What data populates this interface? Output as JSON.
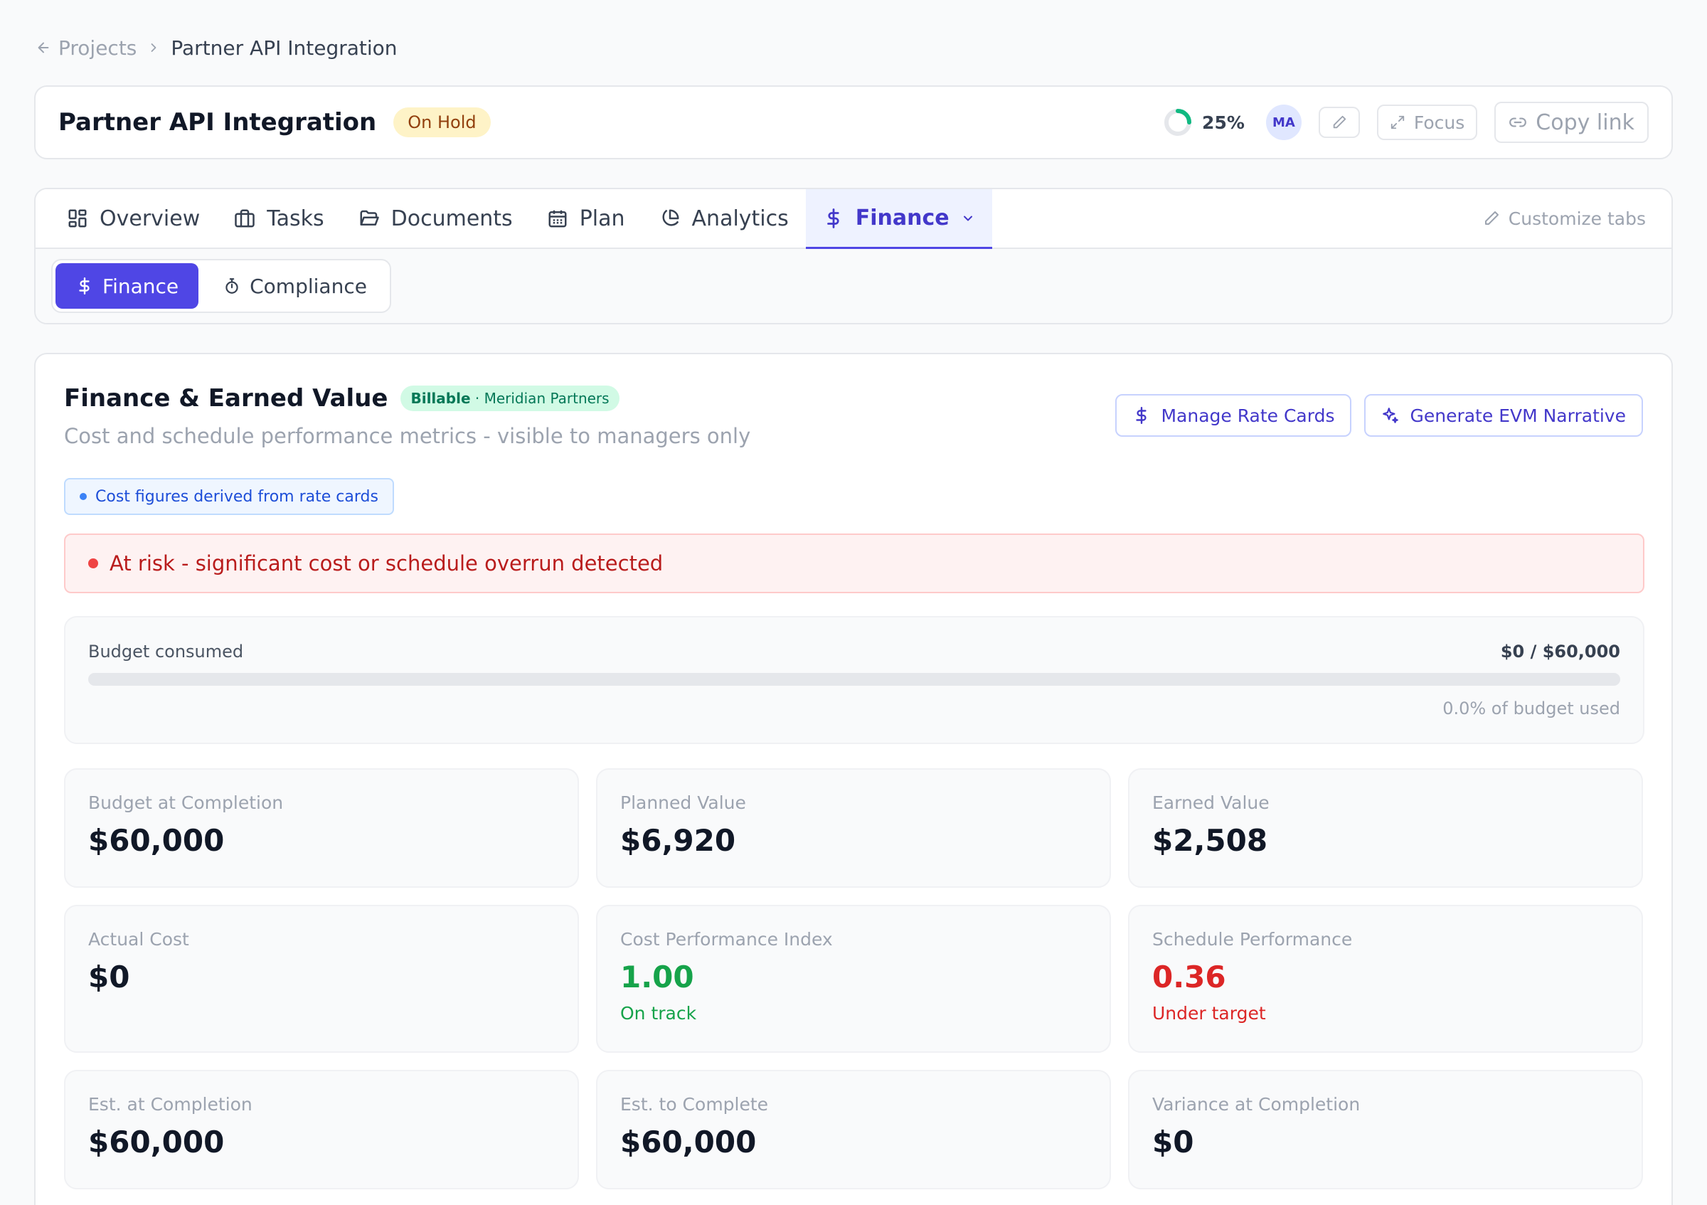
{
  "breadcrumb": {
    "back_label": "Projects",
    "current": "Partner API Integration"
  },
  "header": {
    "title": "Partner API Integration",
    "status": "On Hold",
    "progress_pct": "25%",
    "progress_value": 0.25,
    "avatar_initials": "MA",
    "focus_label": "Focus",
    "copy_link_label": "Copy link"
  },
  "tabs": {
    "items": [
      {
        "label": "Overview",
        "icon": "grid-icon"
      },
      {
        "label": "Tasks",
        "icon": "briefcase-icon"
      },
      {
        "label": "Documents",
        "icon": "folder-icon"
      },
      {
        "label": "Plan",
        "icon": "calendar-icon"
      },
      {
        "label": "Analytics",
        "icon": "pie-chart-icon"
      },
      {
        "label": "Finance",
        "icon": "dollar-icon",
        "active": true
      }
    ],
    "customize_label": "Customize tabs"
  },
  "subtabs": {
    "finance": "Finance",
    "compliance": "Compliance"
  },
  "finance": {
    "title": "Finance & Earned Value",
    "billable_label": "Billable",
    "client": "· Meridian Partners",
    "subtitle": "Cost and schedule performance metrics - visible to managers only",
    "manage_rate_cards": "Manage Rate Cards",
    "generate_narrative": "Generate EVM Narrative",
    "info_note": "Cost figures derived from rate cards",
    "risk_message": "At risk - significant cost or schedule overrun detected",
    "budget": {
      "label": "Budget consumed",
      "amount": "$0 / $60,000",
      "used_pct_text": "0.0% of budget used",
      "used_fraction": 0.0
    },
    "metrics": {
      "bac": {
        "label": "Budget at Completion",
        "value": "$60,000"
      },
      "pv": {
        "label": "Planned Value",
        "value": "$6,920"
      },
      "ev": {
        "label": "Earned Value",
        "value": "$2,508"
      },
      "ac": {
        "label": "Actual Cost",
        "value": "$0"
      },
      "cpi": {
        "label": "Cost Performance Index",
        "value": "1.00",
        "note": "On track"
      },
      "spi": {
        "label": "Schedule Performance",
        "value": "0.36",
        "note": "Under target"
      },
      "eac": {
        "label": "Est. at Completion",
        "value": "$60,000"
      },
      "etc": {
        "label": "Est. to Complete",
        "value": "$60,000"
      },
      "vac": {
        "label": "Variance at Completion",
        "value": "$0"
      }
    }
  },
  "colors": {
    "accent": "#4f46e5",
    "on_track": "#16a34a",
    "under_target": "#dc2626",
    "risk": "#ef4444",
    "status_hold_bg": "#fef3c7"
  }
}
